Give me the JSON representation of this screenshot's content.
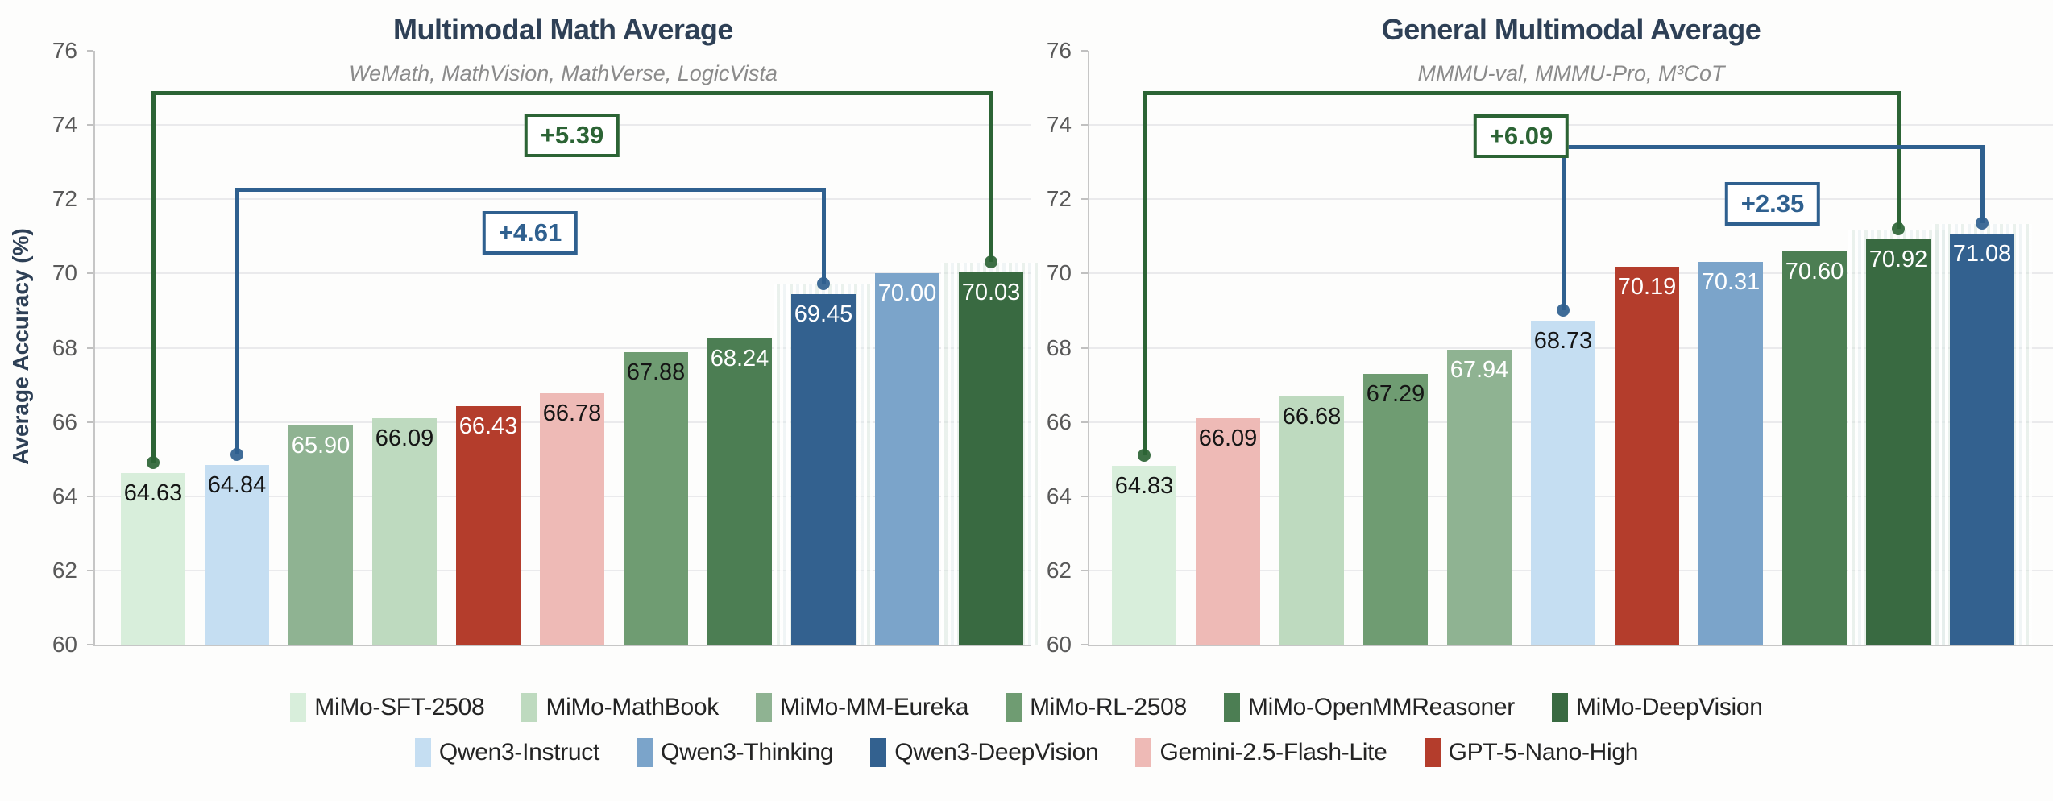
{
  "palette": {
    "MiMo-SFT-2508": "#d8eedb",
    "MiMo-MathBook": "#bedabf",
    "MiMo-MM-Eureka": "#8fb392",
    "MiMo-RL-2508": "#6f9c72",
    "MiMo-OpenMMReasoner": "#4c7e53",
    "MiMo-DeepVision": "#396a41",
    "Qwen3-Instruct": "#c5def2",
    "Qwen3-Thinking": "#7ba4ca",
    "Qwen3-DeepVision": "#33618f",
    "Gemini-2.5-Flash-Lite": "#eebab6",
    "GPT-5-Nano-High": "#b43d2c"
  },
  "annotation_colors": {
    "green": "#2c6435",
    "blue": "#2f608f"
  },
  "label_colors": {
    "dark": "#151515",
    "light": "#ffffff"
  },
  "legend": {
    "row1": [
      "MiMo-SFT-2508",
      "MiMo-MathBook",
      "MiMo-MM-Eureka",
      "MiMo-RL-2508",
      "MiMo-OpenMMReasoner",
      "MiMo-DeepVision"
    ],
    "row2": [
      "Qwen3-Instruct",
      "Qwen3-Thinking",
      "Qwen3-DeepVision",
      "Gemini-2.5-Flash-Lite",
      "GPT-5-Nano-High"
    ]
  },
  "chart_data": [
    {
      "type": "bar",
      "title": "Multimodal Math Average",
      "subtitle": "WeMath, MathVision, MathVerse, LogicVista",
      "ylabel": "Average Accuracy (%)",
      "ylim": [
        60,
        76
      ],
      "yticks": [
        60,
        62,
        64,
        66,
        68,
        70,
        72,
        74,
        76
      ],
      "grid": "horizontal",
      "bars": [
        {
          "model": "MiMo-SFT-2508",
          "value": 64.63,
          "value_label": "64.63",
          "label_color": "dark",
          "highlight": false
        },
        {
          "model": "Qwen3-Instruct",
          "value": 64.84,
          "value_label": "64.84",
          "label_color": "dark",
          "highlight": false
        },
        {
          "model": "MiMo-MM-Eureka",
          "value": 65.9,
          "value_label": "65.90",
          "label_color": "light",
          "highlight": false
        },
        {
          "model": "MiMo-MathBook",
          "value": 66.09,
          "value_label": "66.09",
          "label_color": "dark",
          "highlight": false
        },
        {
          "model": "GPT-5-Nano-High",
          "value": 66.43,
          "value_label": "66.43",
          "label_color": "light",
          "highlight": false
        },
        {
          "model": "Gemini-2.5-Flash-Lite",
          "value": 66.78,
          "value_label": "66.78",
          "label_color": "dark",
          "highlight": false
        },
        {
          "model": "MiMo-RL-2508",
          "value": 67.88,
          "value_label": "67.88",
          "label_color": "dark",
          "highlight": false
        },
        {
          "model": "MiMo-OpenMMReasoner",
          "value": 68.24,
          "value_label": "68.24",
          "label_color": "light",
          "highlight": false
        },
        {
          "model": "Qwen3-DeepVision",
          "value": 69.45,
          "value_label": "69.45",
          "label_color": "light",
          "highlight": true
        },
        {
          "model": "Qwen3-Thinking",
          "value": 70.0,
          "value_label": "70.00",
          "label_color": "light",
          "highlight": false
        },
        {
          "model": "MiMo-DeepVision",
          "value": 70.03,
          "value_label": "70.03",
          "label_color": "light",
          "highlight": true
        }
      ],
      "annotations": [
        {
          "label": "+5.39",
          "color": "green",
          "from": 0,
          "to": 10,
          "top_value": 74.92,
          "label_value": 73.72
        },
        {
          "label": "+4.61",
          "color": "blue",
          "from": 1,
          "to": 8,
          "top_value": 72.31,
          "label_value": 71.1
        }
      ]
    },
    {
      "type": "bar",
      "title": "General Multimodal Average",
      "subtitle": "MMMU-val, MMMU-Pro, M³CoT",
      "ylabel": "",
      "ylim": [
        60,
        76
      ],
      "yticks": [
        60,
        62,
        64,
        66,
        68,
        70,
        72,
        74,
        76
      ],
      "grid": "horizontal",
      "bars": [
        {
          "model": "MiMo-SFT-2508",
          "value": 64.83,
          "value_label": "64.83",
          "label_color": "dark",
          "highlight": false
        },
        {
          "model": "Gemini-2.5-Flash-Lite",
          "value": 66.09,
          "value_label": "66.09",
          "label_color": "dark",
          "highlight": false
        },
        {
          "model": "MiMo-MathBook",
          "value": 66.68,
          "value_label": "66.68",
          "label_color": "dark",
          "highlight": false
        },
        {
          "model": "MiMo-RL-2508",
          "value": 67.29,
          "value_label": "67.29",
          "label_color": "dark",
          "highlight": false
        },
        {
          "model": "MiMo-MM-Eureka",
          "value": 67.94,
          "value_label": "67.94",
          "label_color": "light",
          "highlight": false
        },
        {
          "model": "Qwen3-Instruct",
          "value": 68.73,
          "value_label": "68.73",
          "label_color": "dark",
          "highlight": false
        },
        {
          "model": "GPT-5-Nano-High",
          "value": 70.19,
          "value_label": "70.19",
          "label_color": "light",
          "highlight": false
        },
        {
          "model": "Qwen3-Thinking",
          "value": 70.31,
          "value_label": "70.31",
          "label_color": "light",
          "highlight": false
        },
        {
          "model": "MiMo-OpenMMReasoner",
          "value": 70.6,
          "value_label": "70.60",
          "label_color": "light",
          "highlight": false
        },
        {
          "model": "MiMo-DeepVision",
          "value": 70.92,
          "value_label": "70.92",
          "label_color": "light",
          "highlight": true
        },
        {
          "model": "Qwen3-DeepVision",
          "value": 71.08,
          "value_label": "71.08",
          "label_color": "light",
          "highlight": true
        }
      ],
      "annotations": [
        {
          "label": "+6.09",
          "color": "green",
          "from": 0,
          "to": 9,
          "top_value": 74.92,
          "label_value": 73.7
        },
        {
          "label": "+2.35",
          "color": "blue",
          "from": 5,
          "to": 10,
          "top_value": 73.46,
          "label_value": 71.88
        }
      ]
    }
  ]
}
